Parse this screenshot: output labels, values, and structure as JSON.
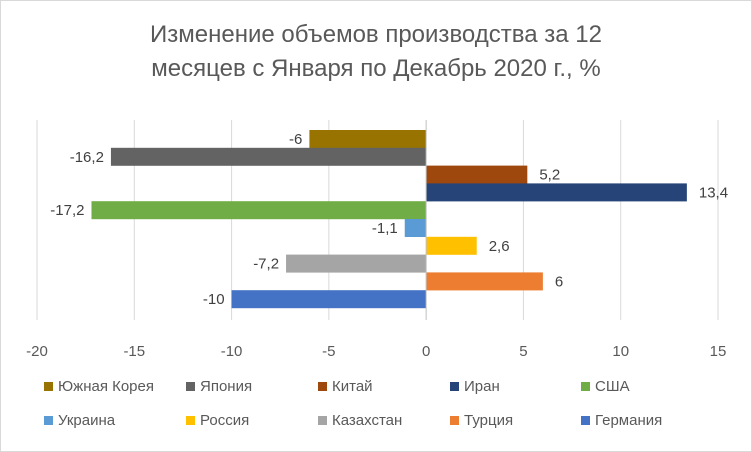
{
  "chart_data": {
    "type": "bar",
    "orientation": "horizontal",
    "title_lines": [
      "Изменение объемов производства за 12",
      "месяцев с Января по Декабрь 2020 г., %"
    ],
    "xlim": [
      -20,
      15
    ],
    "x_ticks": [
      "-20",
      "-15",
      "-10",
      "-5",
      "0",
      "5",
      "10",
      "15"
    ],
    "grid": "vertical",
    "legend_position": "bottom",
    "series": [
      {
        "name": "Южная Корея",
        "value": -6,
        "label": "-6",
        "color": "#997300"
      },
      {
        "name": "Япония",
        "value": -16.2,
        "label": "-16,2",
        "color": "#636363"
      },
      {
        "name": "Китай",
        "value": 5.2,
        "label": "5,2",
        "color": "#9e480e"
      },
      {
        "name": "Иран",
        "value": 13.4,
        "label": "13,4",
        "color": "#264478"
      },
      {
        "name": "США",
        "value": -17.2,
        "label": "-17,2",
        "color": "#70ad47"
      },
      {
        "name": "Украина",
        "value": -1.1,
        "label": "-1,1",
        "color": "#5b9bd5"
      },
      {
        "name": "Россия",
        "value": 2.6,
        "label": "2,6",
        "color": "#ffc000"
      },
      {
        "name": "Казахстан",
        "value": -7.2,
        "label": "-7,2",
        "color": "#a5a5a5"
      },
      {
        "name": "Турция",
        "value": 6,
        "label": "6",
        "color": "#ed7d31"
      },
      {
        "name": "Германия",
        "value": -10,
        "label": "-10",
        "color": "#4472c4"
      }
    ]
  }
}
